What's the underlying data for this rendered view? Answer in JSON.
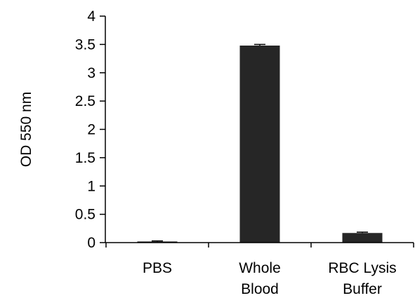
{
  "chart_data": {
    "type": "bar",
    "categories": [
      [
        "PBS"
      ],
      [
        "Whole",
        "Blood"
      ],
      [
        "RBC Lysis",
        "Buffer"
      ]
    ],
    "values": [
      0.02,
      3.48,
      0.17
    ],
    "errors": [
      0.01,
      0.02,
      0.015
    ],
    "ylabel": "OD 550 nm",
    "xlabel": "",
    "ylim": [
      0,
      4
    ],
    "yticks": [
      0,
      0.5,
      1,
      1.5,
      2,
      2.5,
      3,
      3.5,
      4
    ],
    "ytick_labels": [
      "0",
      "0.5",
      "1",
      "1.5",
      "2",
      "2.5",
      "3",
      "3.5",
      "4"
    ],
    "bar_color": "#262626",
    "axis_color": "#000000",
    "grid": false,
    "legend": "none"
  }
}
